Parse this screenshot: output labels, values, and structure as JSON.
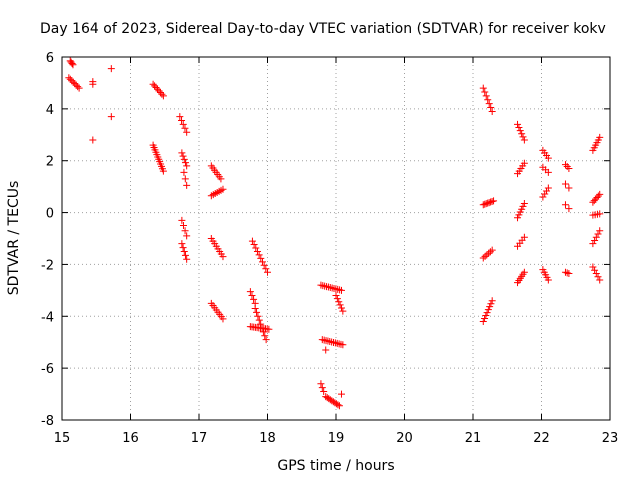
{
  "chart_data": {
    "type": "scatter",
    "title": "Day 164 of 2023, Sidereal Day-to-day VTEC variation (SDTVAR) for receiver kokv",
    "xlabel": "GPS time / hours",
    "ylabel": "SDTVAR / TECUs",
    "xlim": [
      15,
      23
    ],
    "ylim": [
      -8,
      6
    ],
    "xticks": [
      "15",
      "16",
      "17",
      "18",
      "19",
      "20",
      "21",
      "22",
      "23"
    ],
    "yticks": [
      "-8",
      "-6",
      "-4",
      "-2",
      "0",
      "2",
      "4",
      "6"
    ],
    "grid": true,
    "marker": "+",
    "color": "#ff0000",
    "segments": [
      [
        15.12,
        5.85,
        15.16,
        5.7,
        4
      ],
      [
        15.1,
        5.2,
        15.25,
        4.8,
        8
      ],
      [
        15.45,
        5.05,
        15.45,
        4.95,
        2
      ],
      [
        15.45,
        2.8,
        15.45,
        2.8,
        1
      ],
      [
        15.72,
        5.55,
        15.72,
        5.55,
        1
      ],
      [
        15.72,
        3.7,
        15.72,
        3.7,
        1
      ],
      [
        16.33,
        4.95,
        16.48,
        4.5,
        8
      ],
      [
        16.33,
        2.6,
        16.48,
        1.6,
        12
      ],
      [
        16.72,
        3.7,
        16.82,
        3.1,
        5
      ],
      [
        16.75,
        2.3,
        16.82,
        1.8,
        5
      ],
      [
        16.78,
        1.55,
        16.82,
        1.05,
        3
      ],
      [
        16.75,
        -0.3,
        16.82,
        -0.9,
        4
      ],
      [
        16.75,
        -1.2,
        16.82,
        -1.8,
        5
      ],
      [
        17.18,
        1.8,
        17.32,
        1.3,
        7
      ],
      [
        17.18,
        0.65,
        17.35,
        0.9,
        7
      ],
      [
        17.18,
        -1.0,
        17.35,
        -1.7,
        8
      ],
      [
        17.18,
        -3.5,
        17.35,
        -4.1,
        8
      ],
      [
        17.75,
        -3.05,
        17.82,
        -3.5,
        4
      ],
      [
        17.78,
        -1.1,
        18.0,
        -2.3,
        10
      ],
      [
        17.75,
        -4.4,
        18.02,
        -4.5,
        12
      ],
      [
        17.82,
        -3.7,
        17.98,
        -4.9,
        9
      ],
      [
        18.78,
        -2.8,
        19.08,
        -3.0,
        12
      ],
      [
        19.0,
        -3.2,
        19.1,
        -3.8,
        6
      ],
      [
        18.8,
        -4.9,
        19.1,
        -5.1,
        12
      ],
      [
        18.85,
        -5.3,
        18.85,
        -5.3,
        1
      ],
      [
        18.78,
        -6.6,
        18.82,
        -6.9,
        3
      ],
      [
        18.85,
        -7.1,
        19.05,
        -7.45,
        10
      ],
      [
        19.08,
        -7.0,
        19.08,
        -7.0,
        1
      ],
      [
        21.15,
        4.8,
        21.28,
        3.9,
        7
      ],
      [
        21.15,
        0.3,
        21.3,
        0.45,
        8
      ],
      [
        21.15,
        -1.75,
        21.28,
        -1.45,
        6
      ],
      [
        21.15,
        -4.2,
        21.28,
        -3.4,
        8
      ],
      [
        21.65,
        3.4,
        21.75,
        2.8,
        6
      ],
      [
        21.65,
        1.5,
        21.75,
        1.9,
        5
      ],
      [
        21.65,
        -0.2,
        21.75,
        0.35,
        6
      ],
      [
        21.65,
        -1.3,
        21.75,
        -0.95,
        4
      ],
      [
        21.65,
        -2.7,
        21.75,
        -2.3,
        6
      ],
      [
        22.02,
        2.4,
        22.1,
        2.1,
        4
      ],
      [
        22.02,
        1.75,
        22.1,
        1.55,
        3
      ],
      [
        22.02,
        0.6,
        22.1,
        0.95,
        4
      ],
      [
        22.02,
        -2.2,
        22.1,
        -2.6,
        5
      ],
      [
        22.35,
        1.85,
        22.4,
        1.7,
        3
      ],
      [
        22.35,
        1.1,
        22.4,
        0.95,
        2
      ],
      [
        22.35,
        0.3,
        22.4,
        0.15,
        2
      ],
      [
        22.35,
        -2.3,
        22.4,
        -2.35,
        3
      ],
      [
        22.75,
        2.4,
        22.85,
        2.9,
        6
      ],
      [
        22.75,
        0.4,
        22.85,
        0.7,
        6
      ],
      [
        22.75,
        -0.1,
        22.85,
        -0.05,
        4
      ],
      [
        22.75,
        -1.2,
        22.85,
        -0.7,
        5
      ],
      [
        22.75,
        -2.1,
        22.85,
        -2.6,
        5
      ]
    ]
  }
}
